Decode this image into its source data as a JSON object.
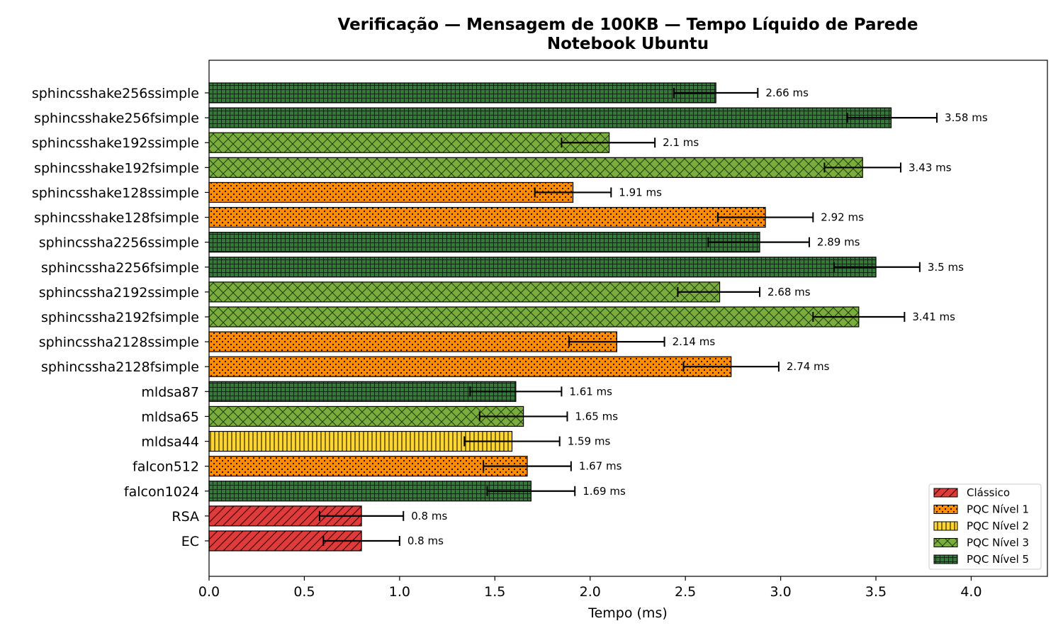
{
  "chart_data": {
    "type": "bar",
    "orientation": "horizontal",
    "title": "Verificação — Mensagem de 100KB — Tempo Líquido de Parede",
    "subtitle": "Notebook Ubuntu",
    "xlabel": "Tempo (ms)",
    "ylabel": "",
    "xlim": [
      0,
      4.4
    ],
    "xticks": [
      "0.0",
      "0.5",
      "1.0",
      "1.5",
      "2.0",
      "2.5",
      "3.0",
      "3.5",
      "4.0"
    ],
    "grid": false,
    "legend_position": "bottom-right",
    "value_unit": "ms",
    "categories": [
      "sphincsshake256ssimple",
      "sphincsshake256fsimple",
      "sphincsshake192ssimple",
      "sphincsshake192fsimple",
      "sphincsshake128ssimple",
      "sphincsshake128fsimple",
      "sphincssha2256ssimple",
      "sphincssha2256fsimple",
      "sphincssha2192ssimple",
      "sphincssha2192fsimple",
      "sphincssha2128ssimple",
      "sphincssha2128fsimple",
      "mldsa87",
      "mldsa65",
      "mldsa44",
      "falcon512",
      "falcon1024",
      "RSA",
      "EC"
    ],
    "values": [
      2.66,
      3.58,
      2.1,
      3.43,
      1.91,
      2.92,
      2.89,
      3.5,
      2.68,
      3.41,
      2.14,
      2.74,
      1.61,
      1.65,
      1.59,
      1.67,
      1.69,
      0.8,
      0.8
    ],
    "value_labels": [
      "2.66 ms",
      "3.58 ms",
      "2.1 ms",
      "3.43 ms",
      "1.91 ms",
      "2.92 ms",
      "2.89 ms",
      "3.5 ms",
      "2.68 ms",
      "3.41 ms",
      "2.14 ms",
      "2.74 ms",
      "1.61 ms",
      "1.65 ms",
      "1.59 ms",
      "1.67 ms",
      "1.69 ms",
      "0.8 ms",
      "0.8 ms"
    ],
    "error_low": [
      2.44,
      3.35,
      1.85,
      3.23,
      1.71,
      2.67,
      2.62,
      3.28,
      2.46,
      3.17,
      1.89,
      2.49,
      1.37,
      1.42,
      1.34,
      1.44,
      1.46,
      0.58,
      0.6
    ],
    "error_high": [
      2.88,
      3.82,
      2.34,
      3.63,
      2.11,
      3.17,
      3.15,
      3.73,
      2.89,
      3.65,
      2.39,
      2.99,
      1.85,
      1.88,
      1.84,
      1.9,
      1.92,
      1.02,
      1.0
    ],
    "groups": [
      5,
      5,
      3,
      3,
      1,
      1,
      5,
      5,
      3,
      3,
      1,
      1,
      5,
      3,
      2,
      1,
      5,
      0,
      0
    ],
    "series": [
      {
        "name": "Clássico",
        "color": "#e03a3a",
        "hatch": "diagonal"
      },
      {
        "name": "PQC Nível 1",
        "color": "#ff8c00",
        "hatch": "dots"
      },
      {
        "name": "PQC Nível 2",
        "color": "#ffd633",
        "hatch": "vertical"
      },
      {
        "name": "PQC Nível 3",
        "color": "#7aad3b",
        "hatch": "crosshatch"
      },
      {
        "name": "PQC Nível 5",
        "color": "#2e7d32",
        "hatch": "grid"
      }
    ]
  }
}
